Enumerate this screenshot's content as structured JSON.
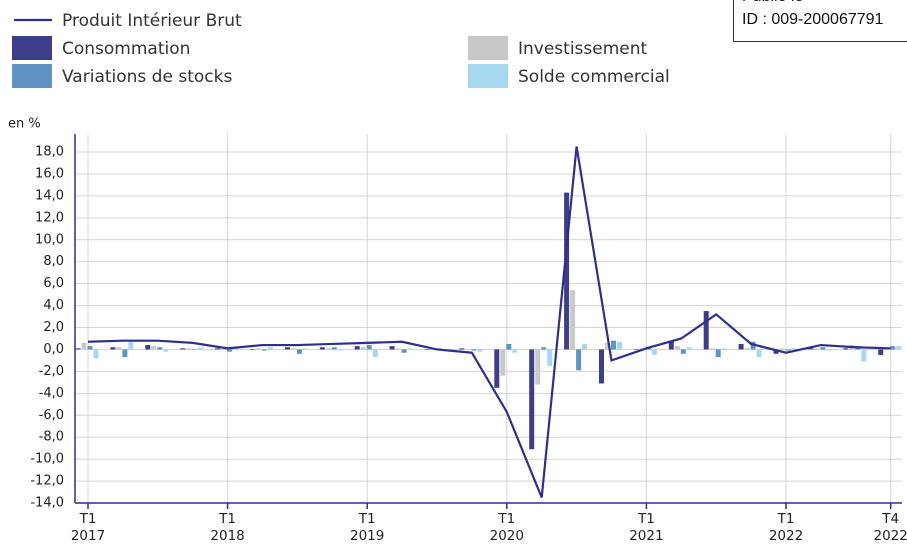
{
  "chart_data": {
    "type": "bar",
    "y_label": "en %",
    "categories": [
      "T1 2017",
      null,
      null,
      null,
      "T1 2018",
      null,
      null,
      null,
      "T1 2019",
      null,
      null,
      null,
      "T1 2020",
      null,
      null,
      null,
      "T1 2021",
      null,
      null,
      null,
      "T1 2022",
      null,
      null,
      "T4 2022"
    ],
    "series": [
      {
        "name": "Produit Intérieur Brut",
        "type": "line",
        "color": "#2e2f8f",
        "values": [
          0.7,
          0.8,
          0.8,
          0.6,
          0.1,
          0.4,
          0.4,
          0.5,
          0.6,
          0.7,
          0.0,
          -0.3,
          -5.7,
          -13.5,
          18.5,
          -1.0,
          0.1,
          1.0,
          3.2,
          0.5,
          -0.3,
          0.4,
          0.2,
          0.1
        ]
      },
      {
        "name": "Consommation",
        "type": "bar",
        "color": "#3d3d8c",
        "values": [
          0.1,
          0.2,
          0.4,
          0.1,
          0.1,
          0.0,
          0.2,
          0.2,
          0.3,
          0.3,
          0.0,
          0.1,
          -3.5,
          -9.1,
          14.3,
          -3.1,
          0.0,
          0.8,
          3.5,
          0.5,
          -0.4,
          0.1,
          0.1,
          -0.5
        ]
      },
      {
        "name": "Investissement",
        "type": "bar",
        "color": "#c8c8c8",
        "values": [
          0.6,
          0.2,
          0.3,
          0.1,
          0.0,
          0.1,
          0.1,
          0.1,
          0.2,
          0.1,
          0.1,
          0.0,
          -2.4,
          -3.2,
          5.4,
          0.6,
          0.1,
          0.3,
          0.1,
          0.1,
          0.1,
          0.1,
          0.4,
          0.0
        ]
      },
      {
        "name": "Variations de stocks",
        "type": "bar",
        "color": "#5f93c2",
        "values": [
          0.3,
          -0.7,
          0.2,
          0.0,
          -0.2,
          -0.1,
          -0.4,
          0.2,
          0.4,
          -0.3,
          0.1,
          -0.1,
          0.5,
          0.2,
          -1.9,
          0.8,
          0.2,
          -0.4,
          -0.7,
          0.7,
          -0.1,
          0.2,
          0.3,
          0.3
        ]
      },
      {
        "name": "Solde commercial",
        "type": "bar",
        "color": "#a6d9f0",
        "values": [
          -0.8,
          0.7,
          -0.2,
          0.2,
          0.2,
          0.2,
          0.1,
          -0.1,
          -0.7,
          0.1,
          -0.1,
          -0.2,
          -0.3,
          -1.5,
          0.5,
          0.7,
          -0.5,
          0.2,
          0.1,
          -0.7,
          0.1,
          -0.1,
          -1.1,
          0.3
        ]
      }
    ],
    "ylim": [
      -14,
      18
    ],
    "yticks": [
      {
        "value": 18,
        "label": "18,0"
      },
      {
        "value": 16,
        "label": "16,0"
      },
      {
        "value": 14,
        "label": "14,0"
      },
      {
        "value": 12,
        "label": "12,0"
      },
      {
        "value": 10,
        "label": "10,0"
      },
      {
        "value": 8,
        "label": "8,0"
      },
      {
        "value": 6,
        "label": "6,0"
      },
      {
        "value": 4,
        "label": "4,0"
      },
      {
        "value": 2,
        "label": "2,0"
      },
      {
        "value": 0,
        "label": "0,0"
      },
      {
        "value": -2,
        "label": "-2,0"
      },
      {
        "value": -4,
        "label": "-4,0"
      },
      {
        "value": -6,
        "label": "-6,0"
      },
      {
        "value": -8,
        "label": "-8,0"
      },
      {
        "value": -10,
        "label": "-10,0"
      },
      {
        "value": -12,
        "label": "-12,0"
      },
      {
        "value": -14,
        "label": "-14,0"
      }
    ],
    "grid": true
  },
  "stamp": {
    "line1": "Publié le",
    "line2": "ID : 009-200067791"
  }
}
